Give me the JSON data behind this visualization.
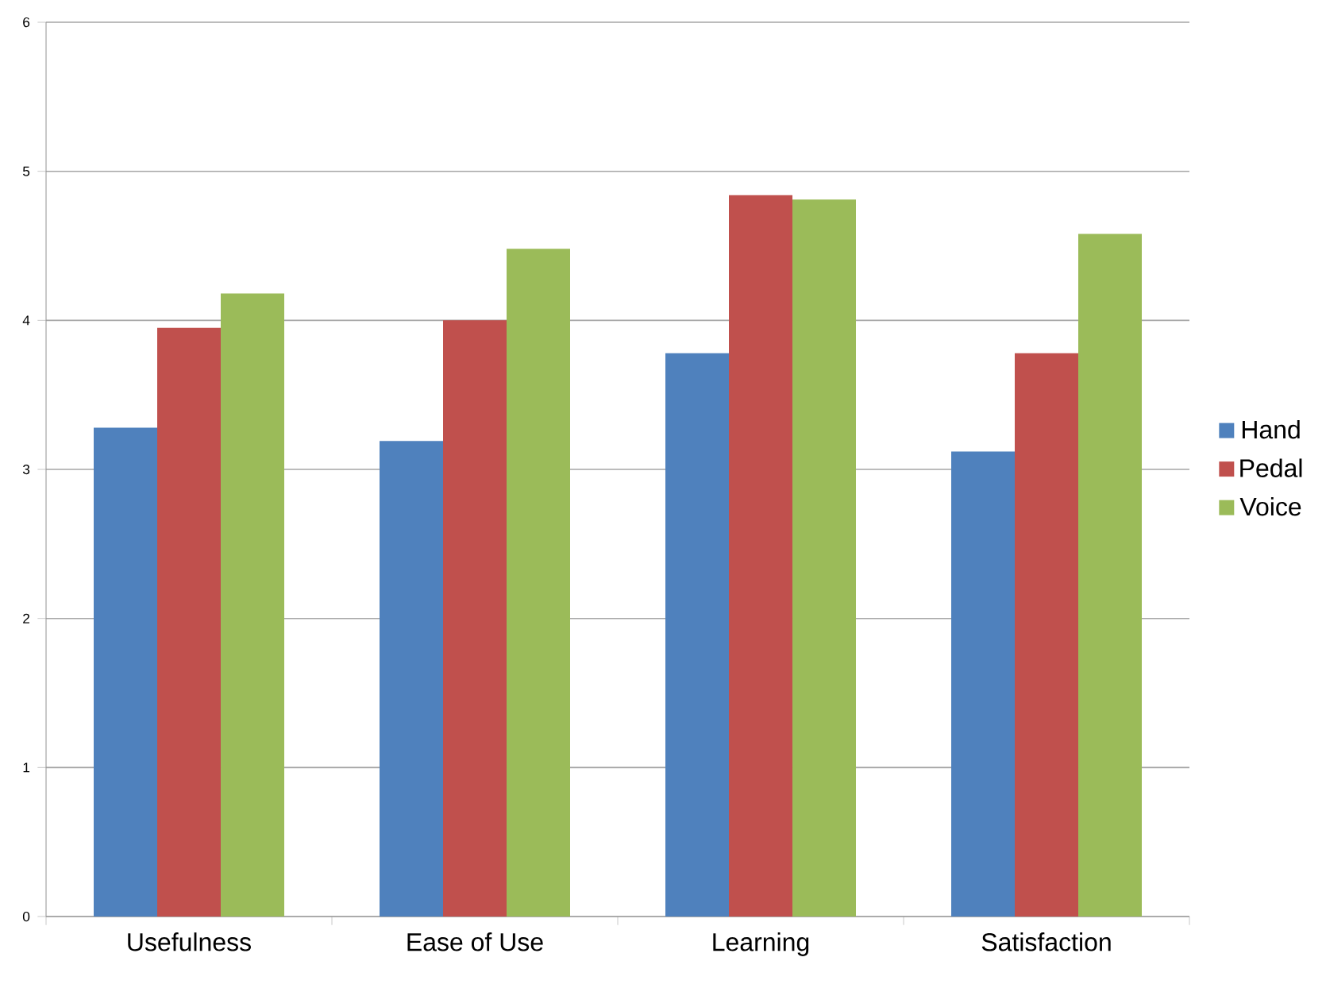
{
  "chart_data": {
    "type": "bar",
    "categories": [
      "Usefulness",
      "Ease of Use",
      "Learning",
      "Satisfaction"
    ],
    "series": [
      {
        "name": "Hand",
        "color": "#4f81bd",
        "values": [
          3.28,
          3.19,
          3.78,
          3.12
        ]
      },
      {
        "name": "Pedal",
        "color": "#c0504d",
        "values": [
          3.95,
          4.0,
          4.84,
          3.78
        ]
      },
      {
        "name": "Voice",
        "color": "#9bbb59",
        "values": [
          4.18,
          4.48,
          4.81,
          4.58
        ]
      }
    ],
    "ylim": [
      0,
      6
    ],
    "yticks": [
      0,
      1,
      2,
      3,
      4,
      5,
      6
    ],
    "grid": "y",
    "legend": "right"
  }
}
